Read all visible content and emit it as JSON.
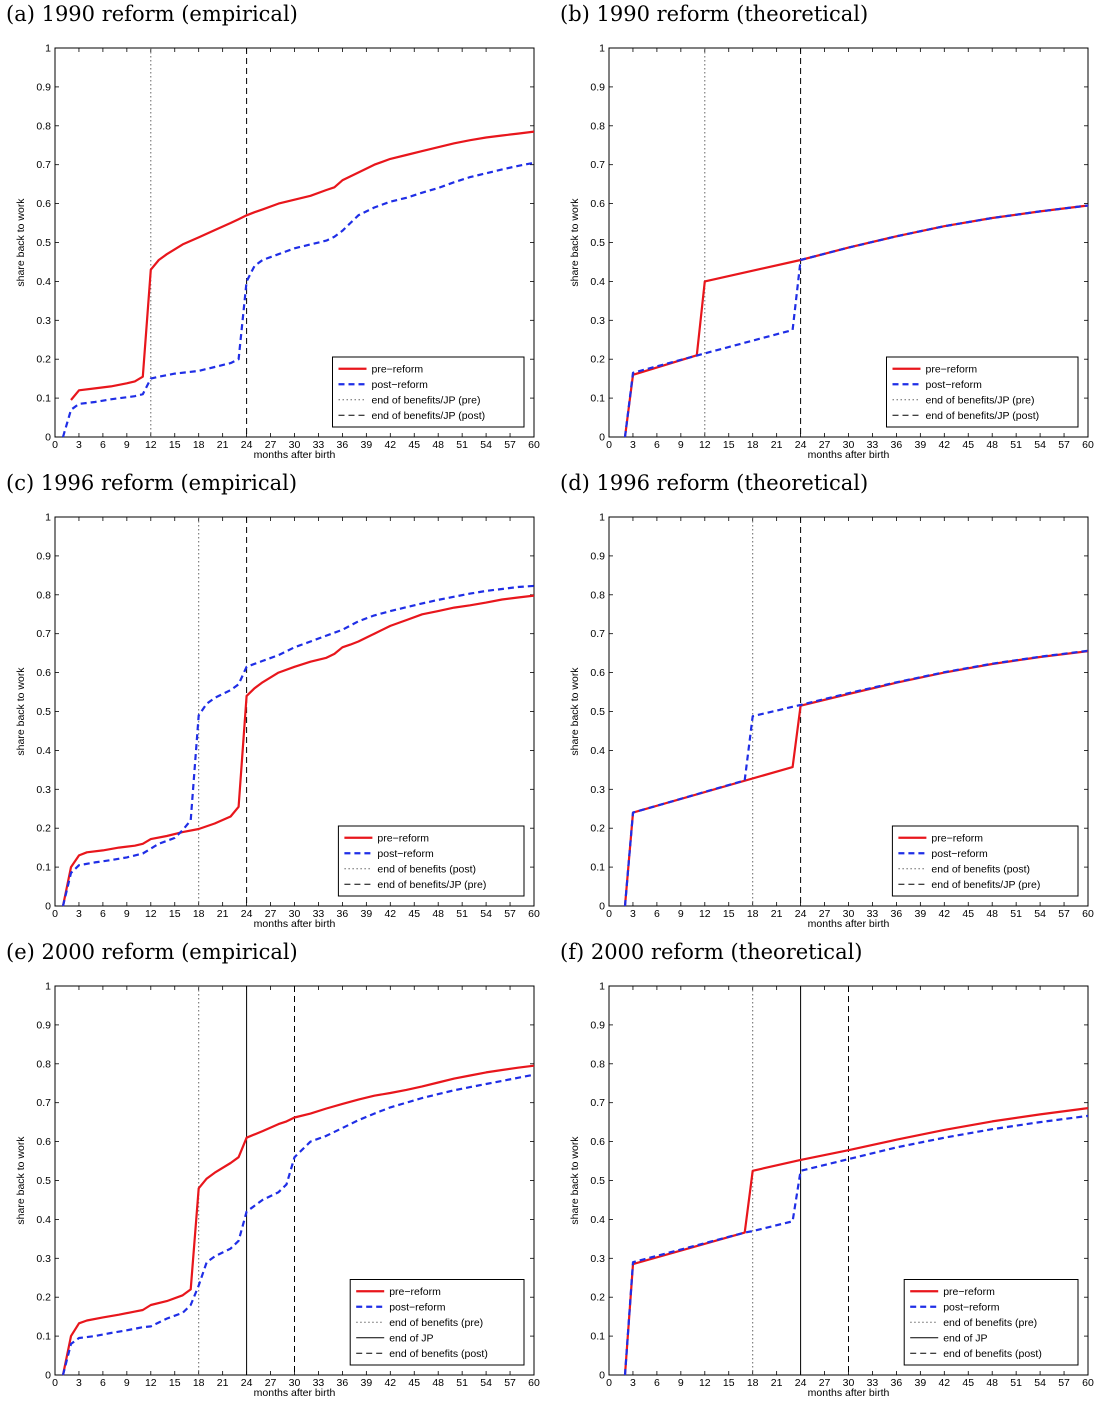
{
  "chart_data": [
    {
      "type": "line",
      "title": "(a) 1990 reform (empirical)",
      "xlabel": "months after birth",
      "ylabel": "share back to work",
      "xlim": [
        0,
        60
      ],
      "ylim": [
        0,
        1
      ],
      "xticks": [
        0,
        3,
        6,
        9,
        12,
        15,
        18,
        21,
        24,
        27,
        30,
        33,
        36,
        39,
        42,
        45,
        48,
        51,
        54,
        57,
        60
      ],
      "yticks": [
        0,
        0.1,
        0.2,
        0.3,
        0.4,
        0.5,
        0.6,
        0.7,
        0.8,
        0.9,
        1
      ],
      "grid": false,
      "legend_position": "lower-right",
      "vlines": [
        {
          "x": 12,
          "style": "dotted",
          "name": "end of benefits/JP (pre)"
        },
        {
          "x": 24,
          "style": "dashed",
          "name": "end of benefits/JP (post)"
        }
      ],
      "series": [
        {
          "name": "pre−reform",
          "color": "#e8161c",
          "style": "solid",
          "x": [
            2,
            3,
            5,
            7,
            9,
            10,
            11,
            12,
            13,
            14,
            16,
            18,
            20,
            22,
            23,
            24,
            25,
            26,
            28,
            30,
            32,
            34,
            35,
            36,
            37,
            38,
            40,
            42,
            44,
            46,
            48,
            50,
            52,
            54,
            56,
            58,
            60
          ],
          "y": [
            0.095,
            0.12,
            0.125,
            0.13,
            0.138,
            0.143,
            0.155,
            0.43,
            0.455,
            0.47,
            0.495,
            0.513,
            0.532,
            0.55,
            0.56,
            0.57,
            0.578,
            0.585,
            0.6,
            0.61,
            0.62,
            0.635,
            0.642,
            0.66,
            0.67,
            0.68,
            0.7,
            0.715,
            0.725,
            0.735,
            0.745,
            0.755,
            0.763,
            0.77,
            0.775,
            0.78,
            0.785
          ]
        },
        {
          "name": "post−reform",
          "color": "#1f2ee6",
          "style": "dashed",
          "x": [
            1,
            2,
            3,
            5,
            7,
            10,
            11,
            12,
            13,
            15,
            18,
            20,
            22,
            23,
            24,
            25,
            26,
            28,
            30,
            32,
            34,
            35,
            36,
            37,
            38,
            40,
            42,
            44,
            46,
            48,
            50,
            52,
            54,
            56,
            58,
            60
          ],
          "y": [
            0,
            0.07,
            0.085,
            0.09,
            0.097,
            0.105,
            0.11,
            0.15,
            0.155,
            0.163,
            0.17,
            0.18,
            0.19,
            0.2,
            0.4,
            0.44,
            0.455,
            0.47,
            0.485,
            0.495,
            0.505,
            0.515,
            0.53,
            0.55,
            0.57,
            0.59,
            0.605,
            0.615,
            0.628,
            0.64,
            0.655,
            0.668,
            0.678,
            0.688,
            0.697,
            0.705
          ]
        }
      ]
    },
    {
      "type": "line",
      "title": "(b) 1990 reform (theoretical)",
      "xlabel": "months after birth",
      "ylabel": "share back to work",
      "xlim": [
        0,
        60
      ],
      "ylim": [
        0,
        1
      ],
      "xticks": [
        0,
        3,
        6,
        9,
        12,
        15,
        18,
        21,
        24,
        27,
        30,
        33,
        36,
        39,
        42,
        45,
        48,
        51,
        54,
        57,
        60
      ],
      "yticks": [
        0,
        0.1,
        0.2,
        0.3,
        0.4,
        0.5,
        0.6,
        0.7,
        0.8,
        0.9,
        1
      ],
      "grid": false,
      "legend_position": "lower-right",
      "vlines": [
        {
          "x": 12,
          "style": "dotted",
          "name": "end of benefits/JP (pre)"
        },
        {
          "x": 24,
          "style": "dashed",
          "name": "end of benefits/JP (post)"
        }
      ],
      "series": [
        {
          "name": "pre−reform",
          "color": "#e8161c",
          "style": "solid",
          "x": [
            2,
            3,
            11,
            12,
            24,
            30,
            36,
            42,
            48,
            54,
            60
          ],
          "y": [
            0,
            0.16,
            0.21,
            0.4,
            0.455,
            0.487,
            0.516,
            0.542,
            0.563,
            0.58,
            0.595
          ]
        },
        {
          "name": "post−reform",
          "color": "#1f2ee6",
          "style": "dashed",
          "x": [
            2,
            3,
            12,
            23,
            24,
            30,
            36,
            42,
            48,
            54,
            60
          ],
          "y": [
            0,
            0.165,
            0.215,
            0.275,
            0.455,
            0.487,
            0.516,
            0.542,
            0.563,
            0.58,
            0.595
          ]
        }
      ]
    },
    {
      "type": "line",
      "title": "(c) 1996 reform (empirical)",
      "xlabel": "months after birth",
      "ylabel": "share back to work",
      "xlim": [
        0,
        60
      ],
      "ylim": [
        0,
        1
      ],
      "xticks": [
        0,
        3,
        6,
        9,
        12,
        15,
        18,
        21,
        24,
        27,
        30,
        33,
        36,
        39,
        42,
        45,
        48,
        51,
        54,
        57,
        60
      ],
      "yticks": [
        0,
        0.1,
        0.2,
        0.3,
        0.4,
        0.5,
        0.6,
        0.7,
        0.8,
        0.9,
        1
      ],
      "grid": false,
      "legend_position": "lower-right",
      "vlines": [
        {
          "x": 18,
          "style": "dotted",
          "name": "end of benefits (post)"
        },
        {
          "x": 24,
          "style": "dashed",
          "name": "end of benefits/JP (pre)"
        }
      ],
      "series": [
        {
          "name": "pre−reform",
          "color": "#e8161c",
          "style": "solid",
          "x": [
            1,
            2,
            3,
            4,
            6,
            8,
            10,
            11,
            12,
            14,
            16,
            18,
            20,
            22,
            23,
            24,
            25,
            26,
            28,
            30,
            32,
            34,
            35,
            36,
            37,
            38,
            40,
            42,
            44,
            46,
            48,
            50,
            52,
            54,
            56,
            58,
            60
          ],
          "y": [
            0,
            0.1,
            0.13,
            0.138,
            0.143,
            0.15,
            0.155,
            0.16,
            0.172,
            0.18,
            0.19,
            0.198,
            0.212,
            0.23,
            0.255,
            0.54,
            0.56,
            0.575,
            0.6,
            0.615,
            0.628,
            0.638,
            0.648,
            0.665,
            0.672,
            0.68,
            0.7,
            0.72,
            0.735,
            0.75,
            0.758,
            0.767,
            0.773,
            0.78,
            0.788,
            0.793,
            0.798
          ]
        },
        {
          "name": "post−reform",
          "color": "#1f2ee6",
          "style": "dashed",
          "x": [
            1,
            2,
            3,
            5,
            7,
            9,
            11,
            13,
            15,
            16,
            17,
            18,
            19,
            20,
            22,
            23,
            24,
            26,
            28,
            30,
            32,
            34,
            36,
            38,
            40,
            42,
            44,
            46,
            48,
            50,
            52,
            54,
            56,
            58,
            60
          ],
          "y": [
            0,
            0.085,
            0.105,
            0.112,
            0.118,
            0.125,
            0.135,
            0.16,
            0.175,
            0.195,
            0.22,
            0.49,
            0.52,
            0.535,
            0.555,
            0.57,
            0.615,
            0.63,
            0.645,
            0.665,
            0.68,
            0.695,
            0.71,
            0.732,
            0.747,
            0.758,
            0.768,
            0.778,
            0.787,
            0.795,
            0.803,
            0.81,
            0.815,
            0.82,
            0.823
          ]
        }
      ]
    },
    {
      "type": "line",
      "title": "(d) 1996 reform (theoretical)",
      "xlabel": "months after birth",
      "ylabel": "share back to work",
      "xlim": [
        0,
        60
      ],
      "ylim": [
        0,
        1
      ],
      "xticks": [
        0,
        3,
        6,
        9,
        12,
        15,
        18,
        21,
        24,
        27,
        30,
        33,
        36,
        39,
        42,
        45,
        48,
        51,
        54,
        57,
        60
      ],
      "yticks": [
        0,
        0.1,
        0.2,
        0.3,
        0.4,
        0.5,
        0.6,
        0.7,
        0.8,
        0.9,
        1
      ],
      "grid": false,
      "legend_position": "lower-right",
      "vlines": [
        {
          "x": 18,
          "style": "dotted",
          "name": "end of benefits (post)"
        },
        {
          "x": 24,
          "style": "dashed",
          "name": "end of benefits/JP (pre)"
        }
      ],
      "series": [
        {
          "name": "pre−reform",
          "color": "#e8161c",
          "style": "solid",
          "x": [
            2,
            3,
            23,
            24,
            30,
            36,
            42,
            48,
            54,
            60
          ],
          "y": [
            0,
            0.24,
            0.357,
            0.515,
            0.545,
            0.574,
            0.6,
            0.622,
            0.64,
            0.655
          ]
        },
        {
          "name": "post−reform",
          "color": "#1f2ee6",
          "style": "dashed",
          "x": [
            2,
            3,
            17,
            18,
            24,
            30,
            36,
            42,
            48,
            54,
            60
          ],
          "y": [
            0,
            0.24,
            0.323,
            0.488,
            0.517,
            0.547,
            0.575,
            0.601,
            0.623,
            0.641,
            0.656
          ]
        }
      ]
    },
    {
      "type": "line",
      "title": "(e) 2000 reform (empirical)",
      "xlabel": "months after birth",
      "ylabel": "share back to work",
      "xlim": [
        0,
        60
      ],
      "ylim": [
        0,
        1
      ],
      "xticks": [
        0,
        3,
        6,
        9,
        12,
        15,
        18,
        21,
        24,
        27,
        30,
        33,
        36,
        39,
        42,
        45,
        48,
        51,
        54,
        57,
        60
      ],
      "yticks": [
        0,
        0.1,
        0.2,
        0.3,
        0.4,
        0.5,
        0.6,
        0.7,
        0.8,
        0.9,
        1
      ],
      "grid": false,
      "legend_position": "lower-right",
      "vlines": [
        {
          "x": 18,
          "style": "dotted",
          "name": "end of benefits (pre)"
        },
        {
          "x": 24,
          "style": "solid",
          "name": "end of JP"
        },
        {
          "x": 30,
          "style": "dashed",
          "name": "end of benefits (post)"
        }
      ],
      "series": [
        {
          "name": "pre−reform",
          "color": "#e8161c",
          "style": "solid",
          "x": [
            1,
            2,
            3,
            4,
            6,
            8,
            10,
            11,
            12,
            14,
            16,
            17,
            18,
            19,
            20,
            22,
            23,
            24,
            26,
            28,
            29,
            30,
            32,
            34,
            36,
            38,
            40,
            42,
            44,
            46,
            48,
            50,
            52,
            54,
            56,
            58,
            60
          ],
          "y": [
            0,
            0.1,
            0.133,
            0.14,
            0.148,
            0.155,
            0.163,
            0.167,
            0.18,
            0.19,
            0.205,
            0.22,
            0.48,
            0.505,
            0.52,
            0.545,
            0.56,
            0.61,
            0.627,
            0.645,
            0.652,
            0.662,
            0.672,
            0.685,
            0.697,
            0.708,
            0.718,
            0.725,
            0.733,
            0.742,
            0.752,
            0.762,
            0.77,
            0.778,
            0.784,
            0.79,
            0.795
          ]
        },
        {
          "name": "post−reform",
          "color": "#1f2ee6",
          "style": "dashed",
          "x": [
            1,
            2,
            3,
            5,
            7,
            9,
            11,
            12,
            14,
            16,
            17,
            18,
            19,
            20,
            22,
            23,
            24,
            26,
            28,
            29,
            30,
            32,
            34,
            36,
            38,
            40,
            42,
            44,
            46,
            48,
            50,
            52,
            54,
            56,
            58,
            60
          ],
          "y": [
            0,
            0.08,
            0.095,
            0.1,
            0.108,
            0.115,
            0.123,
            0.125,
            0.145,
            0.16,
            0.18,
            0.23,
            0.29,
            0.305,
            0.325,
            0.345,
            0.42,
            0.45,
            0.47,
            0.49,
            0.56,
            0.6,
            0.615,
            0.635,
            0.655,
            0.672,
            0.688,
            0.7,
            0.712,
            0.722,
            0.732,
            0.74,
            0.748,
            0.756,
            0.764,
            0.772
          ]
        }
      ]
    },
    {
      "type": "line",
      "title": "(f) 2000 reform (theoretical)",
      "xlabel": "months after birth",
      "ylabel": "share back to work",
      "xlim": [
        0,
        60
      ],
      "ylim": [
        0,
        1
      ],
      "xticks": [
        0,
        3,
        6,
        9,
        12,
        15,
        18,
        21,
        24,
        27,
        30,
        33,
        36,
        39,
        42,
        45,
        48,
        51,
        54,
        57,
        60
      ],
      "yticks": [
        0,
        0.1,
        0.2,
        0.3,
        0.4,
        0.5,
        0.6,
        0.7,
        0.8,
        0.9,
        1
      ],
      "grid": false,
      "legend_position": "lower-right",
      "vlines": [
        {
          "x": 18,
          "style": "dotted",
          "name": "end of benefits (pre)"
        },
        {
          "x": 24,
          "style": "solid",
          "name": "end of JP"
        },
        {
          "x": 30,
          "style": "dashed",
          "name": "end of benefits (post)"
        }
      ],
      "series": [
        {
          "name": "pre−reform",
          "color": "#e8161c",
          "style": "solid",
          "x": [
            2,
            3,
            17,
            18,
            24,
            30,
            36,
            42,
            48,
            54,
            60
          ],
          "y": [
            0,
            0.285,
            0.366,
            0.525,
            0.553,
            0.578,
            0.605,
            0.63,
            0.652,
            0.67,
            0.686
          ]
        },
        {
          "name": "post−reform",
          "color": "#1f2ee6",
          "style": "dashed",
          "x": [
            2,
            3,
            17,
            18,
            23,
            24,
            30,
            36,
            42,
            48,
            54,
            60
          ],
          "y": [
            0,
            0.29,
            0.366,
            0.37,
            0.395,
            0.525,
            0.555,
            0.585,
            0.61,
            0.632,
            0.65,
            0.666
          ]
        }
      ]
    }
  ]
}
